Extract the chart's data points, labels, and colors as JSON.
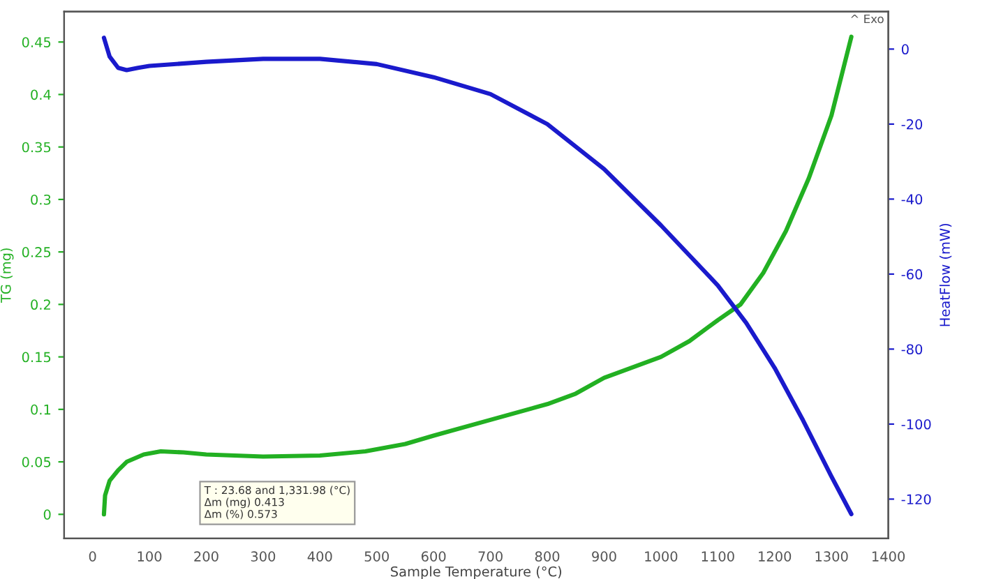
{
  "chart_data": {
    "type": "line",
    "xlabel": "Sample Temperature (°C)",
    "ylabel": "TG (mg)",
    "y2label": "HeatFlow (mW)",
    "xlim": [
      -50,
      1400
    ],
    "xticks": [
      0,
      100,
      200,
      300,
      400,
      500,
      600,
      700,
      800,
      900,
      1000,
      1100,
      1200,
      1300,
      1400
    ],
    "ylim": [
      -0.023,
      0.479
    ],
    "yticks": [
      0,
      0.05,
      0.1,
      0.15,
      0.2,
      0.25,
      0.3,
      0.35,
      0.4,
      0.45
    ],
    "y2lim": [
      -130.5,
      10
    ],
    "y2ticks": [
      -120,
      -100,
      -80,
      -60,
      -40,
      -20,
      0
    ],
    "grid": false,
    "legend": false,
    "marker": "none",
    "line_style": "solid",
    "annotations": [
      "^ Exo",
      "T : 23.68 and 1,331.98 (°C)\nΔm (mg) 0.413\nΔm (%) 0.573"
    ],
    "series": [
      {
        "color": "#22b022",
        "x": [
          20,
          22,
          30,
          45,
          60,
          90,
          120,
          160,
          200,
          300,
          400,
          480,
          550,
          600,
          700,
          800,
          850,
          900,
          1000,
          1050,
          1100,
          1140,
          1180,
          1220,
          1260,
          1300,
          1335
        ],
        "values": [
          0,
          0.018,
          0.032,
          0.042,
          0.05,
          0.057,
          0.06,
          0.059,
          0.057,
          0.055,
          0.056,
          0.06,
          0.067,
          0.075,
          0.09,
          0.105,
          0.115,
          0.13,
          0.15,
          0.165,
          0.185,
          0.2,
          0.23,
          0.27,
          0.32,
          0.38,
          0.455
        ]
      },
      {
        "color": "#1a1acc",
        "axis": "y2",
        "x": [
          20,
          30,
          45,
          60,
          80,
          100,
          200,
          300,
          400,
          500,
          600,
          700,
          800,
          900,
          1000,
          1100,
          1150,
          1200,
          1250,
          1300,
          1335
        ],
        "values": [
          3,
          -2,
          -5,
          -5.6,
          -5,
          -4.5,
          -3.4,
          -2.6,
          -2.6,
          -4,
          -7.5,
          -12,
          -20,
          -32,
          -47,
          -63,
          -73,
          -85,
          -99,
          -114,
          -124
        ]
      }
    ]
  }
}
